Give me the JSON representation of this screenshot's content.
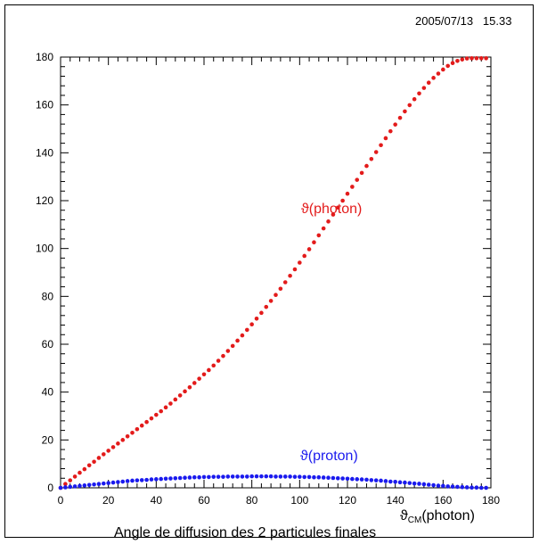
{
  "timestamp": "2005/07/13   15.33",
  "chart_data": {
    "type": "scatter",
    "title": "",
    "xlabel": "",
    "ylabel": "",
    "caption": "Angle de diffusion des 2 particules finales",
    "xlim": [
      0,
      180
    ],
    "ylim": [
      0,
      180
    ],
    "x_ticks": [
      0,
      20,
      40,
      60,
      80,
      100,
      120,
      140,
      160,
      180
    ],
    "y_ticks": [
      0,
      20,
      40,
      60,
      80,
      100,
      120,
      140,
      160,
      180
    ],
    "grid": false,
    "series": [
      {
        "name": "ϑ(photon)",
        "color": "#e31b1b",
        "x": [
          0,
          2,
          4,
          6,
          8,
          10,
          12,
          14,
          16,
          18,
          20,
          22,
          24,
          26,
          28,
          30,
          32,
          34,
          36,
          38,
          40,
          42,
          44,
          46,
          48,
          50,
          52,
          54,
          56,
          58,
          60,
          62,
          64,
          66,
          68,
          70,
          72,
          74,
          76,
          78,
          80,
          82,
          84,
          86,
          88,
          90,
          92,
          94,
          96,
          98,
          100,
          102,
          104,
          106,
          108,
          110,
          112,
          114,
          116,
          118,
          120,
          122,
          124,
          126,
          128,
          130,
          132,
          134,
          136,
          138,
          140,
          142,
          144,
          146,
          148,
          150,
          152,
          154,
          156,
          158,
          160,
          162,
          164,
          166,
          168,
          170,
          172,
          174,
          176,
          178
        ],
        "y": [
          0.0,
          1.6,
          3.1,
          4.7,
          6.3,
          7.8,
          9.4,
          10.9,
          12.5,
          14.0,
          15.5,
          17.0,
          18.5,
          20.0,
          21.5,
          23.0,
          24.5,
          26.0,
          27.5,
          29.0,
          30.5,
          32.0,
          33.6,
          35.2,
          36.9,
          38.6,
          40.3,
          42.0,
          43.8,
          45.6,
          47.4,
          49.2,
          51.1,
          53.1,
          55.1,
          57.2,
          59.3,
          61.5,
          63.7,
          66.0,
          68.3,
          70.7,
          73.1,
          75.6,
          78.1,
          80.6,
          83.2,
          85.9,
          88.6,
          91.3,
          94.1,
          96.9,
          99.7,
          102.6,
          105.5,
          108.4,
          111.3,
          114.2,
          117.1,
          120.0,
          122.9,
          125.8,
          128.7,
          131.6,
          134.5,
          137.4,
          140.3,
          143.2,
          146.1,
          149.0,
          151.8,
          154.6,
          157.3,
          159.9,
          162.4,
          164.8,
          167.1,
          169.3,
          171.3,
          173.1,
          174.8,
          176.3,
          177.5,
          178.4,
          179.0,
          179.4,
          179.5,
          179.5,
          179.5,
          179.5
        ]
      },
      {
        "name": "ϑ(proton)",
        "color": "#1a1aee",
        "x": [
          0,
          2,
          4,
          6,
          8,
          10,
          12,
          14,
          16,
          18,
          20,
          22,
          24,
          26,
          28,
          30,
          32,
          34,
          36,
          38,
          40,
          42,
          44,
          46,
          48,
          50,
          52,
          54,
          56,
          58,
          60,
          62,
          64,
          66,
          68,
          70,
          72,
          74,
          76,
          78,
          80,
          82,
          84,
          86,
          88,
          90,
          92,
          94,
          96,
          98,
          100,
          102,
          104,
          106,
          108,
          110,
          112,
          114,
          116,
          118,
          120,
          122,
          124,
          126,
          128,
          130,
          132,
          134,
          136,
          138,
          140,
          142,
          144,
          146,
          148,
          150,
          152,
          154,
          156,
          158,
          160,
          162,
          164,
          166,
          168,
          170,
          172,
          174,
          176,
          178
        ],
        "y": [
          0.0,
          0.2,
          0.4,
          0.6,
          0.8,
          1.0,
          1.2,
          1.4,
          1.6,
          1.8,
          2.0,
          2.2,
          2.4,
          2.6,
          2.8,
          3.0,
          3.1,
          3.2,
          3.3,
          3.5,
          3.6,
          3.7,
          3.8,
          3.9,
          4.0,
          4.1,
          4.2,
          4.3,
          4.4,
          4.4,
          4.5,
          4.5,
          4.6,
          4.6,
          4.6,
          4.7,
          4.7,
          4.7,
          4.7,
          4.7,
          4.8,
          4.8,
          4.8,
          4.8,
          4.8,
          4.7,
          4.7,
          4.7,
          4.7,
          4.6,
          4.6,
          4.5,
          4.5,
          4.4,
          4.4,
          4.3,
          4.2,
          4.1,
          4.0,
          3.9,
          3.8,
          3.7,
          3.6,
          3.5,
          3.4,
          3.2,
          3.1,
          3.0,
          2.8,
          2.6,
          2.5,
          2.3,
          2.2,
          2.0,
          1.8,
          1.7,
          1.5,
          1.3,
          1.1,
          0.9,
          0.8,
          0.6,
          0.5,
          0.4,
          0.3,
          0.2,
          0.1,
          0.1,
          0.0,
          0.0
        ]
      }
    ],
    "annotations": {
      "photon_label": "ϑ(photon)",
      "proton_label": "ϑ(proton)",
      "x_axis_symbol": "ϑ",
      "x_axis_subscript": "CM",
      "x_axis_rest": "(photon)"
    }
  }
}
